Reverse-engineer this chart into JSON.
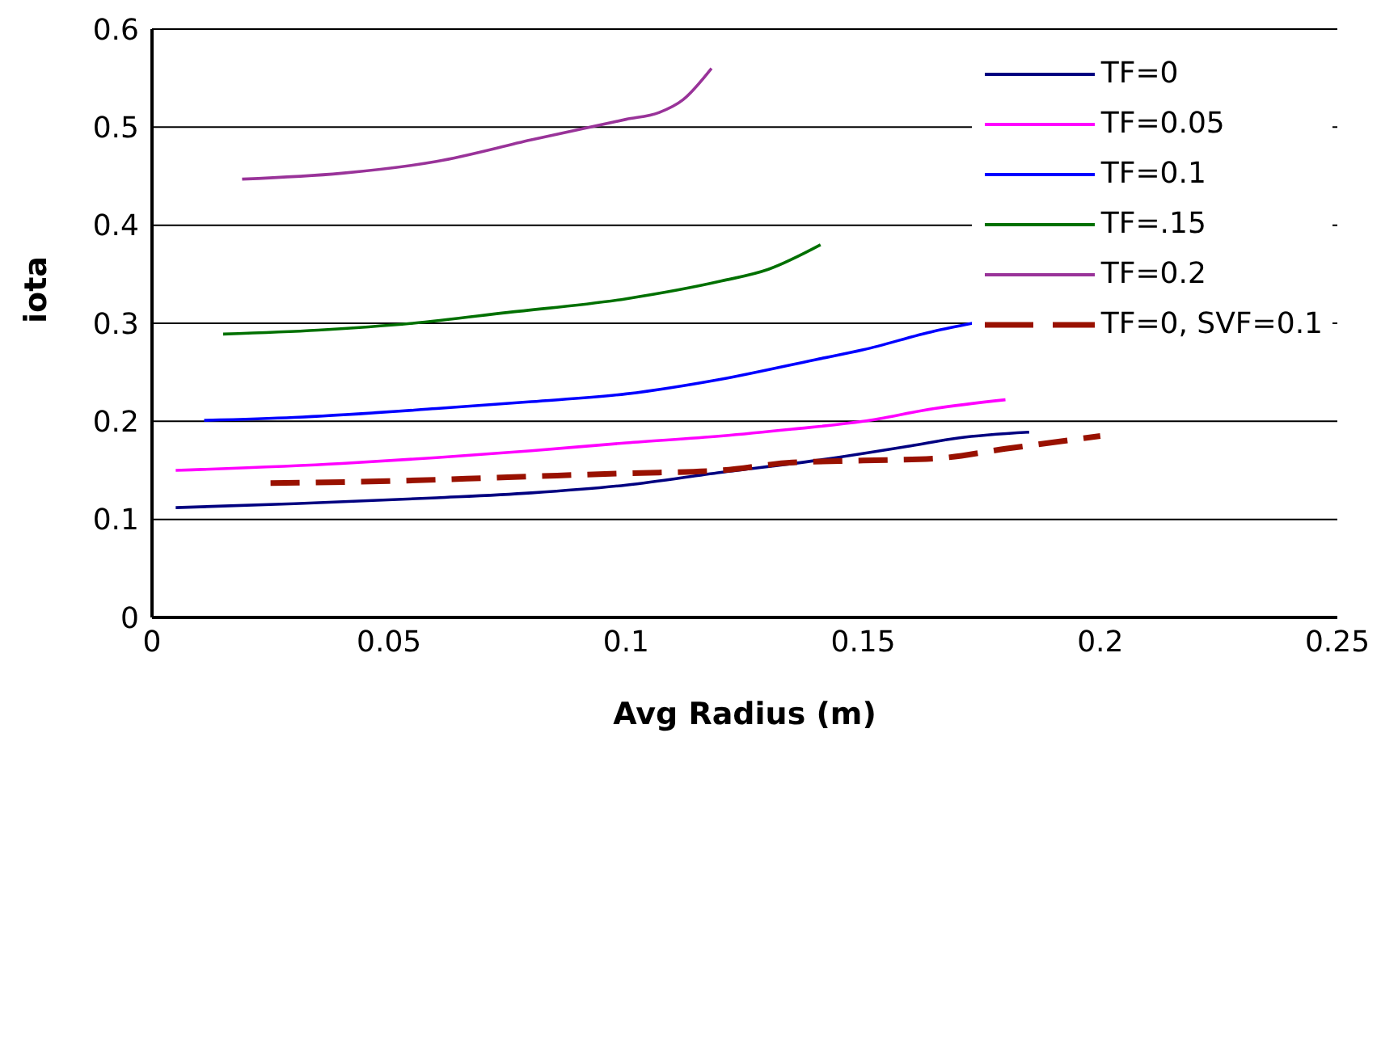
{
  "chart_data": {
    "type": "line",
    "xlabel": "Avg Radius (m)",
    "ylabel": "iota",
    "xlim": [
      0,
      0.25
    ],
    "xticks": [
      0,
      0.05,
      0.1,
      0.15,
      0.2,
      0.25
    ],
    "ylim": [
      0,
      0.6
    ],
    "yticks": [
      0,
      0.1,
      0.2,
      0.3,
      0.4,
      0.5,
      0.6
    ],
    "grid": "y",
    "legend": "top right",
    "marker": "none",
    "series": [
      {
        "name": "TF=0",
        "color": "#000080",
        "x": [
          0.005,
          0.03,
          0.06,
          0.08,
          0.1,
          0.12,
          0.14,
          0.16,
          0.17,
          0.185
        ],
        "values": [
          0.112,
          0.116,
          0.122,
          0.127,
          0.135,
          0.148,
          0.16,
          0.175,
          0.183,
          0.189
        ]
      },
      {
        "name": "TF=0.05",
        "color": "#ff00ff",
        "x": [
          0.005,
          0.04,
          0.06,
          0.08,
          0.1,
          0.12,
          0.135,
          0.15,
          0.165,
          0.18
        ],
        "values": [
          0.15,
          0.157,
          0.163,
          0.17,
          0.178,
          0.185,
          0.192,
          0.2,
          0.213,
          0.222
        ]
      },
      {
        "name": "TF=0.1",
        "color": "#0000ff",
        "x": [
          0.011,
          0.03,
          0.06,
          0.08,
          0.1,
          0.12,
          0.14,
          0.15,
          0.165,
          0.173
        ],
        "values": [
          0.201,
          0.204,
          0.213,
          0.22,
          0.228,
          0.243,
          0.263,
          0.273,
          0.292,
          0.3
        ]
      },
      {
        "name": "TF=.15",
        "color": "#007000",
        "x": [
          0.015,
          0.035,
          0.055,
          0.075,
          0.1,
          0.12,
          0.13,
          0.141
        ],
        "values": [
          0.289,
          0.293,
          0.3,
          0.311,
          0.325,
          0.343,
          0.355,
          0.38
        ]
      },
      {
        "name": "TF=0.2",
        "color": "#993399",
        "x": [
          0.019,
          0.04,
          0.06,
          0.08,
          0.1,
          0.107,
          0.112,
          0.118
        ],
        "values": [
          0.447,
          0.453,
          0.465,
          0.487,
          0.508,
          0.515,
          0.528,
          0.56
        ]
      },
      {
        "name": "TF=0, SVF=0.1",
        "color": "#991100",
        "line_style": "dashed",
        "x": [
          0.025,
          0.05,
          0.075,
          0.1,
          0.12,
          0.135,
          0.15,
          0.165,
          0.18,
          0.2
        ],
        "values": [
          0.137,
          0.139,
          0.143,
          0.147,
          0.15,
          0.158,
          0.16,
          0.162,
          0.172,
          0.185
        ]
      }
    ]
  }
}
